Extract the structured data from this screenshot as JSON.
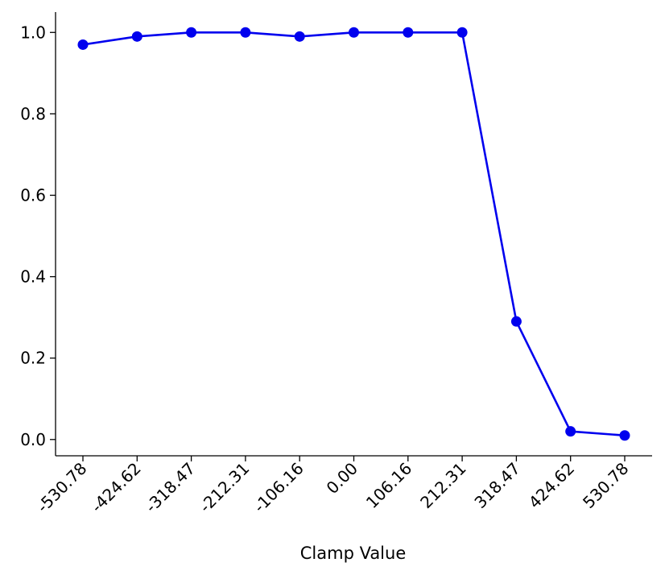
{
  "chart_data": {
    "type": "line",
    "title": "",
    "xlabel": "Clamp Value",
    "ylabel": "",
    "categories": [
      "-530.78",
      "-424.62",
      "-318.47",
      "-212.31",
      "-106.16",
      "0.00",
      "106.16",
      "212.31",
      "318.47",
      "424.62",
      "530.78"
    ],
    "series": [
      {
        "values": [
          0.97,
          0.99,
          1.0,
          1.0,
          0.99,
          1.0,
          1.0,
          1.0,
          0.29,
          0.02,
          0.01
        ],
        "color": "#0000ee",
        "marker": "circle"
      }
    ],
    "ylim": [
      -0.04,
      1.05
    ],
    "yticks": [
      0.0,
      0.2,
      0.4,
      0.6,
      0.8,
      1.0
    ],
    "ytick_labels": [
      "0.0",
      "0.2",
      "0.4",
      "0.6",
      "0.8",
      "1.0"
    ],
    "grid": false,
    "legend": "none",
    "spines": "left-bottom"
  }
}
